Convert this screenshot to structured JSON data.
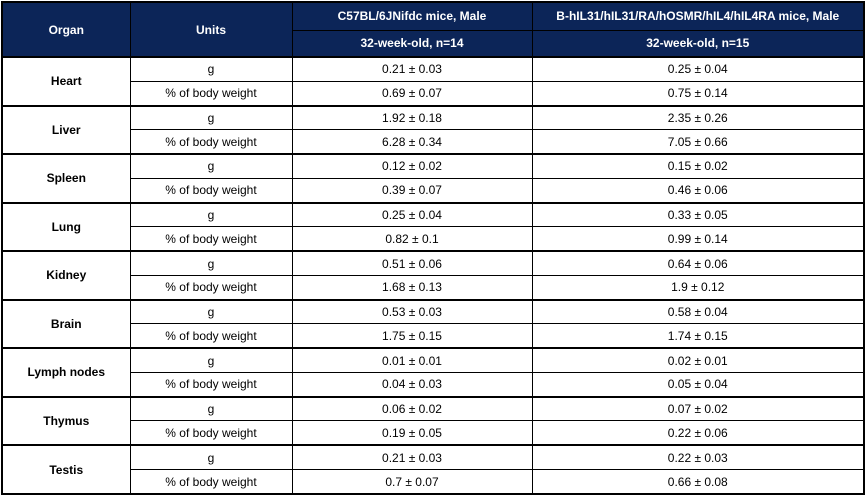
{
  "colors": {
    "header_bg": "#0c2558",
    "header_text": "#ffffff",
    "border": "#000000",
    "body_bg": "#ffffff"
  },
  "table": {
    "header": {
      "organ_label": "Organ",
      "units_label": "Units",
      "groups": [
        {
          "name": "C57BL/6JNifdc mice, Male",
          "age": "32-week-old, n=14"
        },
        {
          "name": "B-hIL31/hIL31/RA/hOSMR/hIL4/hIL4RA mice, Male",
          "age": "32-week-old, n=15"
        }
      ]
    },
    "organs": [
      {
        "name": "Heart",
        "rows": [
          {
            "unit": "g",
            "values": [
              "0.21 ± 0.03",
              "0.25 ± 0.04"
            ]
          },
          {
            "unit": "% of body weight",
            "values": [
              "0.69 ± 0.07",
              "0.75 ± 0.14"
            ]
          }
        ]
      },
      {
        "name": "Liver",
        "rows": [
          {
            "unit": "g",
            "values": [
              "1.92 ± 0.18",
              "2.35 ± 0.26"
            ]
          },
          {
            "unit": "% of body weight",
            "values": [
              "6.28 ± 0.34",
              "7.05 ± 0.66"
            ]
          }
        ]
      },
      {
        "name": "Spleen",
        "rows": [
          {
            "unit": "g",
            "values": [
              "0.12 ± 0.02",
              "0.15 ± 0.02"
            ]
          },
          {
            "unit": "% of body weight",
            "values": [
              "0.39 ± 0.07",
              "0.46 ± 0.06"
            ]
          }
        ]
      },
      {
        "name": "Lung",
        "rows": [
          {
            "unit": "g",
            "values": [
              "0.25 ± 0.04",
              "0.33 ± 0.05"
            ]
          },
          {
            "unit": "% of body weight",
            "values": [
              "0.82 ± 0.1",
              "0.99 ± 0.14"
            ]
          }
        ]
      },
      {
        "name": "Kidney",
        "rows": [
          {
            "unit": "g",
            "values": [
              "0.51 ± 0.06",
              "0.64 ± 0.06"
            ]
          },
          {
            "unit": "% of body weight",
            "values": [
              "1.68 ± 0.13",
              "1.9 ± 0.12"
            ]
          }
        ]
      },
      {
        "name": "Brain",
        "rows": [
          {
            "unit": "g",
            "values": [
              "0.53 ± 0.03",
              "0.58 ± 0.04"
            ]
          },
          {
            "unit": "% of body weight",
            "values": [
              "1.75 ± 0.15",
              "1.74 ± 0.15"
            ]
          }
        ]
      },
      {
        "name": "Lymph nodes",
        "rows": [
          {
            "unit": "g",
            "values": [
              "0.01 ± 0.01",
              "0.02 ± 0.01"
            ]
          },
          {
            "unit": "% of body weight",
            "values": [
              "0.04 ± 0.03",
              "0.05 ± 0.04"
            ]
          }
        ]
      },
      {
        "name": "Thymus",
        "rows": [
          {
            "unit": "g",
            "values": [
              "0.06 ± 0.02",
              "0.07 ± 0.02"
            ]
          },
          {
            "unit": "% of body weight",
            "values": [
              "0.19 ± 0.05",
              "0.22 ± 0.06"
            ]
          }
        ]
      },
      {
        "name": "Testis",
        "rows": [
          {
            "unit": "g",
            "values": [
              "0.21 ± 0.03",
              "0.22 ± 0.03"
            ]
          },
          {
            "unit": "% of body weight",
            "values": [
              "0.7 ± 0.07",
              "0.66 ± 0.08"
            ]
          }
        ]
      }
    ]
  }
}
